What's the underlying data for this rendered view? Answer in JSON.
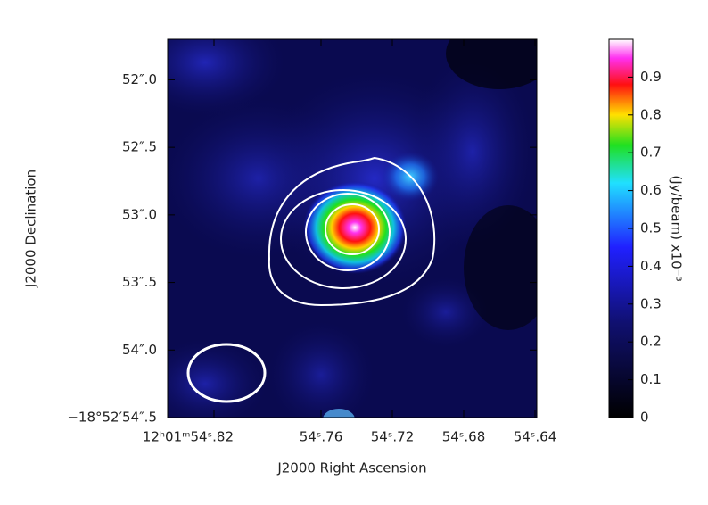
{
  "chart_data": {
    "type": "image",
    "xlabel": "J2000 Right Ascension",
    "ylabel": "J2000 Declination",
    "xlim": [
      54.846,
      54.639
    ],
    "xticks": [
      {
        "value": 54.82,
        "label": "12ʰ01ᵐ54ˢ.82"
      },
      {
        "value": 54.76,
        "label": "54ˢ.76"
      },
      {
        "value": 54.72,
        "label": "54ˢ.72"
      },
      {
        "value": 54.68,
        "label": "54ˢ.68"
      },
      {
        "value": 54.64,
        "label": "54ˢ.64"
      }
    ],
    "ylim": [
      54.5,
      51.7
    ],
    "yticks": [
      {
        "value": 52.0,
        "label": "52″.0"
      },
      {
        "value": 52.5,
        "label": "52″.5"
      },
      {
        "value": 53.0,
        "label": "53″.0"
      },
      {
        "value": 53.5,
        "label": "53″.5"
      },
      {
        "value": 54.0,
        "label": "54″.0"
      },
      {
        "value": 54.5,
        "label": "−18°52′54″.5"
      }
    ],
    "colorbar_label": "(Jy/beam) x10⁻³",
    "clim": [
      0,
      1.0
    ],
    "cticks": [
      0,
      0.1,
      0.2,
      0.3,
      0.4,
      0.5,
      0.6,
      0.7,
      0.8,
      0.9
    ]
  }
}
